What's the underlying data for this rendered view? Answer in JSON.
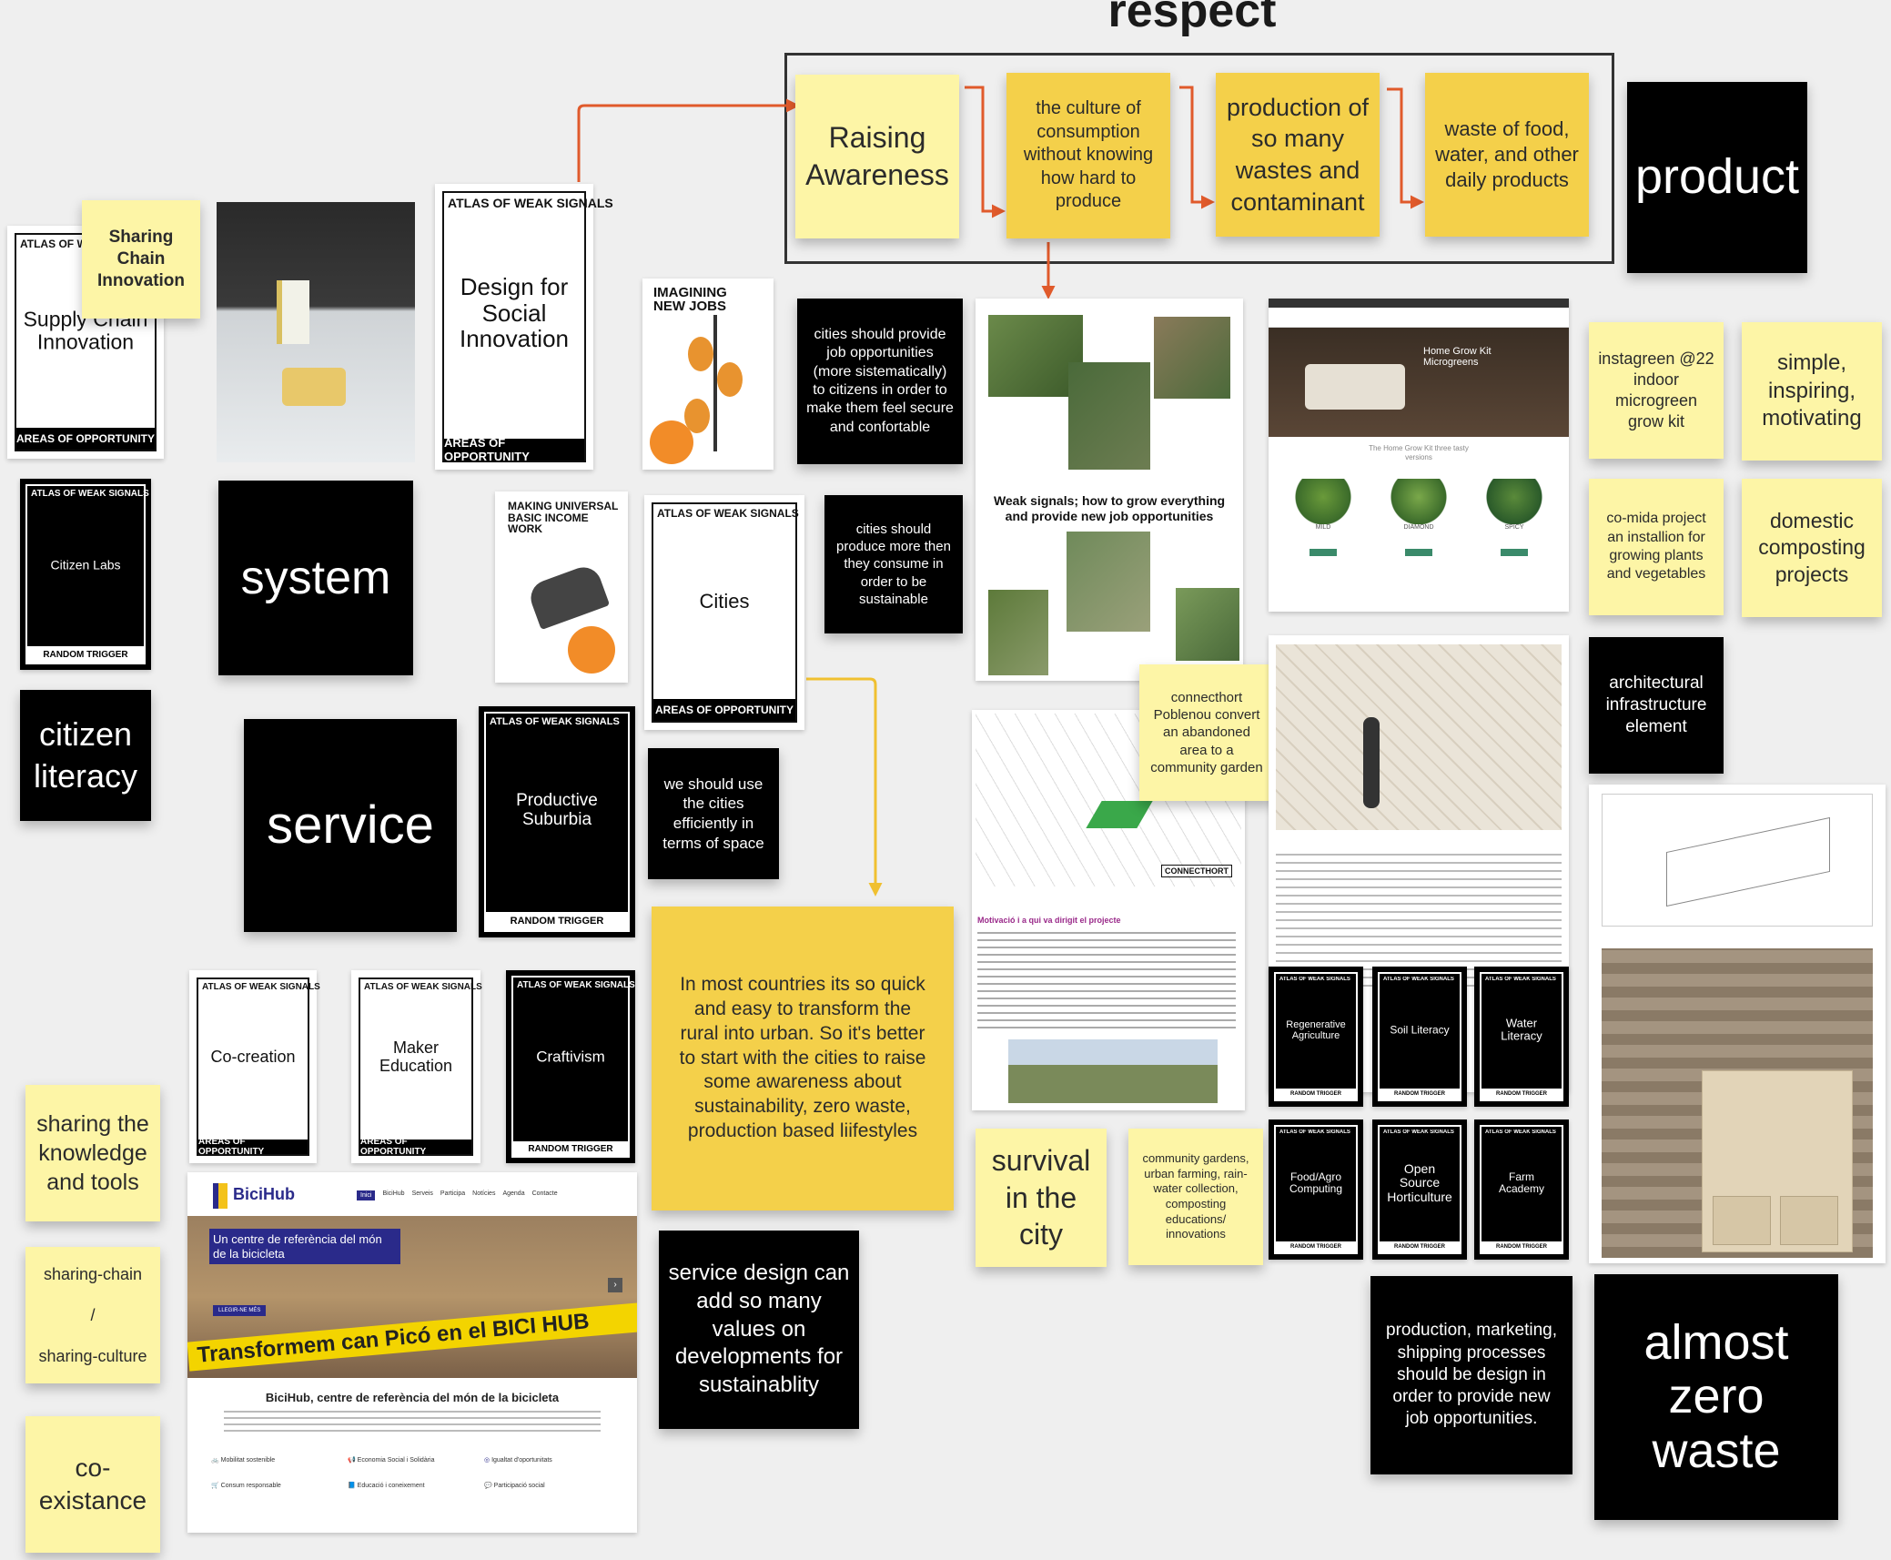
{
  "board": {
    "title": "respect"
  },
  "flow": [
    {
      "text": "Raising Awareness"
    },
    {
      "text": "the culture of consumption without knowing how hard to produce"
    },
    {
      "text": "production of so many wastes and contaminant"
    },
    {
      "text": "waste of food, water, and other daily products"
    }
  ],
  "stickies": {
    "product": "product",
    "system": "system",
    "service": "service",
    "citizen_literacy": "citizen literacy",
    "sharing_chain_innovation": "Sharing Chain Innovation",
    "cities_jobs": "cities should provide job opportunities (more sistematically) to citizens in order to make them feel secure and confortable",
    "cities_produce": "cities should produce more then they consume in order to be sustainable",
    "use_cities": "we should use the cities efficiently in terms of space",
    "rural_urban": "In most countries its so quick and easy to transform the rural into urban. So it's better to start with the cities to raise some awareness about sustainability, zero waste, production based liifestyles",
    "service_design": "service design can add so many values on developments for sustainablity",
    "survival": "survival in the city",
    "community_gardens": "community gardens, urban farming, rain-water collection, composting educations/ innovations",
    "connecthort": "connecthort Poblenou convert an abandoned area to a community garden",
    "instagreen": "instagreen @22 indoor microgreen grow kit",
    "simple": "simple, inspiring, motivating",
    "comida": "co-mida project an installion for growing plants and vegetables",
    "composting": "domestic composting projects",
    "arch": "architectural infrastructure element",
    "production_jobs": "production, marketing, shipping processes should be design in order to provide new job opportunities.",
    "zero_waste": "almost zero waste",
    "sharing_knowledge": "sharing the knowledge and tools",
    "sharing_chain_culture": "sharing-chain / sharing-culture",
    "coexistance": "co-existance"
  },
  "cards": {
    "supply_chain": {
      "header": "ATLAS OF W",
      "title": "Supply Chain Innovation",
      "footer": "AREAS OF OPPORTUNITY"
    },
    "design_social": {
      "header": "ATLAS OF WEAK SIGNALS",
      "title": "Design for Social Innovation",
      "footer": "AREAS OF OPPORTUNITY"
    },
    "citizen_labs": {
      "header": "ATLAS OF WEAK SIGNALS",
      "title": "Citizen Labs",
      "footer": "RANDOM TRIGGER"
    },
    "cities": {
      "header": "ATLAS OF WEAK SIGNALS",
      "title": "Cities",
      "footer": "AREAS OF OPPORTUNITY"
    },
    "productive_suburbia": {
      "header": "ATLAS OF WEAK SIGNALS",
      "title": "Productive Suburbia",
      "footer": "RANDOM TRIGGER"
    },
    "co_creation": {
      "header": "ATLAS OF WEAK SIGNALS",
      "title": "Co-creation",
      "footer": "AREAS OF OPPORTUNITY"
    },
    "maker_education": {
      "header": "ATLAS OF WEAK SIGNALS",
      "title": "Maker Education",
      "footer": "AREAS OF OPPORTUNITY"
    },
    "craftivism": {
      "header": "ATLAS OF WEAK SIGNALS",
      "title": "Craftivism",
      "footer": "RANDOM TRIGGER"
    },
    "regenerative": {
      "header": "ATLAS OF WEAK SIGNALS",
      "title": "Regenerative Agriculture",
      "footer": "RANDOM TRIGGER"
    },
    "soil": {
      "header": "ATLAS OF WEAK SIGNALS",
      "title": "Soil Literacy",
      "footer": "RANDOM TRIGGER"
    },
    "water": {
      "header": "ATLAS OF WEAK SIGNALS",
      "title": "Water Literacy",
      "footer": "RANDOM TRIGGER"
    },
    "food_agro": {
      "header": "ATLAS OF WEAK SIGNALS",
      "title": "Food/Agro Computing",
      "footer": "RANDOM TRIGGER"
    },
    "open_source": {
      "header": "ATLAS OF WEAK SIGNALS",
      "title": "Open Source Horticulture",
      "footer": "RANDOM TRIGGER"
    },
    "farm_academy": {
      "header": "ATLAS OF WEAK SIGNALS",
      "title": "Farm Academy",
      "footer": "RANDOM TRIGGER"
    }
  },
  "posters": {
    "imagining": "IMAGINING NEW JOBS",
    "ubi": "MAKING UNIVERSAL BASIC INCOME WORK"
  },
  "collage": {
    "caption": "Weak signals; how to grow everything and provide new job opportunities"
  },
  "instagreen_site": {
    "hero": "Home Grow Kit Microgreens",
    "subtitle": "The Home Grow Kit three tasty versions",
    "products": [
      "MILD",
      "DIAMOND",
      "SPICY"
    ]
  },
  "connecthort_doc": {
    "heading": "Motivació i a qui va dirigit el projecte",
    "logo": "CONNECTHORT"
  },
  "bicihub": {
    "logo": "BiciHub",
    "nav": [
      "Inici",
      "BiciHub",
      "Serveis",
      "Participa",
      "Notícies",
      "Agenda",
      "Contacte"
    ],
    "banner": "Un centre de referència del món de la bicicleta",
    "button": "LLEGIR-NE MÉS",
    "graffiti": "Transformem can Picó en el BICI HUB",
    "title": "BiciHub, centre de referència del món de la bicicleta",
    "features": [
      "Mobilitat sostenible",
      "Economia Social i Solidària",
      "Igualtat d'oportunitats",
      "Consum responsable",
      "Educació i coneixement",
      "Participació social"
    ]
  },
  "colors": {
    "arrow_red": "#e05a2b",
    "arrow_yellow": "#f0c030",
    "sticky_light": "#fdf5a6",
    "sticky_dark": "#f4d04a"
  }
}
